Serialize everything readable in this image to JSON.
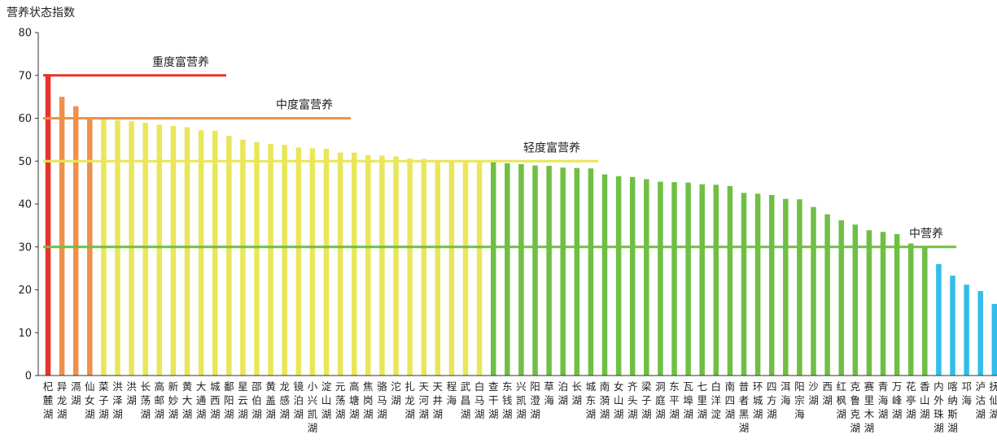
{
  "chart_data": {
    "type": "bar",
    "ylabel": "营养状态指数",
    "ylim": [
      0,
      80
    ],
    "yticks": [
      0,
      10,
      20,
      30,
      40,
      50,
      60,
      70,
      80
    ],
    "grid": false,
    "categories": [
      "杞麓湖",
      "异龙湖",
      "滆湖",
      "仙女湖",
      "菜子湖",
      "洪泽湖",
      "洪湖",
      "长荡湖",
      "高邮湖",
      "新妙湖",
      "黄大湖",
      "大通湖",
      "城西湖",
      "鄱阳湖",
      "星云湖",
      "邵伯湖",
      "黄盖湖",
      "龙感湖",
      "镜泊湖",
      "小兴凯湖",
      "淀山湖",
      "元荡湖",
      "高塘湖",
      "焦岗湖",
      "骆马湖",
      "沱湖",
      "扎龙湖",
      "天河湖",
      "天井湖",
      "程海",
      "武昌湖",
      "白马湖",
      "查干湖",
      "东钱湖",
      "兴凯湖",
      "阳澄湖",
      "草海",
      "泊湖",
      "长湖",
      "城东湖",
      "南漪湖",
      "女山湖",
      "齐头湖",
      "梁子湖",
      "洞庭湖",
      "东平湖",
      "瓦埠湖",
      "七里湖",
      "白洋淀",
      "南四湖",
      "普者黑湖",
      "环城湖",
      "四方湖",
      "洱海",
      "阳宗海",
      "沙湖",
      "西湖",
      "红枫湖",
      "克鲁克湖",
      "赛里木湖",
      "青海湖",
      "万峰湖",
      "花亭湖",
      "香山湖",
      "内外珠湖",
      "喀纳斯湖",
      "邛海",
      "泸沽湖",
      "抚仙湖"
    ],
    "category_lines": [
      [
        "杞",
        "麓",
        "湖"
      ],
      [
        "异",
        "龙",
        "湖"
      ],
      [
        "滆",
        "湖"
      ],
      [
        "仙",
        "女",
        "湖"
      ],
      [
        "菜",
        "子",
        "湖"
      ],
      [
        "洪",
        "泽",
        "湖"
      ],
      [
        "洪",
        "湖"
      ],
      [
        "长",
        "荡",
        "湖"
      ],
      [
        "高",
        "邮",
        "湖"
      ],
      [
        "新",
        "妙",
        "湖"
      ],
      [
        "黄",
        "大",
        "湖"
      ],
      [
        "大",
        "通",
        "湖"
      ],
      [
        "城",
        "西",
        "湖"
      ],
      [
        "鄱",
        "阳",
        "湖"
      ],
      [
        "星",
        "云",
        "湖"
      ],
      [
        "邵",
        "伯",
        "湖"
      ],
      [
        "黄",
        "盖",
        "湖"
      ],
      [
        "龙",
        "感",
        "湖"
      ],
      [
        "镜",
        "泊",
        "湖"
      ],
      [
        "小",
        "兴",
        "凯",
        "湖"
      ],
      [
        "淀",
        "山",
        "湖"
      ],
      [
        "元",
        "荡",
        "湖"
      ],
      [
        "高",
        "塘",
        "湖"
      ],
      [
        "焦",
        "岗",
        "湖"
      ],
      [
        "骆",
        "马",
        "湖"
      ],
      [
        "沱",
        "湖"
      ],
      [
        "扎",
        "龙",
        "湖"
      ],
      [
        "天",
        "河",
        "湖"
      ],
      [
        "天",
        "井",
        "湖"
      ],
      [
        "程",
        "海"
      ],
      [
        "武",
        "昌",
        "湖"
      ],
      [
        "白",
        "马",
        "湖"
      ],
      [
        "查",
        "干",
        "湖"
      ],
      [
        "东",
        "钱",
        "湖"
      ],
      [
        "兴",
        "凯",
        "湖"
      ],
      [
        "阳",
        "澄",
        "湖"
      ],
      [
        "草",
        "海"
      ],
      [
        "泊",
        "湖"
      ],
      [
        "长",
        "湖"
      ],
      [
        "城",
        "东",
        "湖"
      ],
      [
        "南",
        "漪",
        "湖"
      ],
      [
        "女",
        "山",
        "湖"
      ],
      [
        "齐",
        "头",
        "湖"
      ],
      [
        "梁",
        "子",
        "湖"
      ],
      [
        "洞",
        "庭",
        "湖"
      ],
      [
        "东",
        "平",
        "湖"
      ],
      [
        "瓦",
        "埠",
        "湖"
      ],
      [
        "七",
        "里",
        "湖"
      ],
      [
        "白",
        "洋",
        "淀"
      ],
      [
        "南",
        "四",
        "湖"
      ],
      [
        "普",
        "者",
        "黑",
        "湖"
      ],
      [
        "环",
        "城",
        "湖"
      ],
      [
        "四",
        "方",
        "湖"
      ],
      [
        "洱",
        "海"
      ],
      [
        "阳",
        "宗",
        "海"
      ],
      [
        "沙",
        "湖"
      ],
      [
        "西",
        "湖"
      ],
      [
        "红",
        "枫",
        "湖"
      ],
      [
        "克",
        "鲁",
        "克",
        "湖"
      ],
      [
        "赛",
        "里",
        "木",
        "湖"
      ],
      [
        "青",
        "海",
        "湖"
      ],
      [
        "万",
        "峰",
        "湖"
      ],
      [
        "花",
        "亭",
        "湖"
      ],
      [
        "香",
        "山",
        "湖"
      ],
      [
        "内",
        "外",
        "珠",
        "湖"
      ],
      [
        "喀",
        "纳",
        "斯",
        "湖"
      ],
      [
        "邛",
        "海"
      ],
      [
        "泸",
        "沽",
        "湖"
      ],
      [
        "抚",
        "仙",
        "湖"
      ]
    ],
    "values": [
      70.3,
      65.0,
      62.8,
      60.3,
      59.8,
      59.6,
      59.3,
      59.0,
      58.5,
      58.2,
      57.9,
      57.2,
      57.1,
      55.9,
      55.0,
      54.4,
      54.0,
      53.8,
      53.2,
      53.0,
      52.9,
      52.0,
      52.0,
      51.4,
      51.3,
      51.1,
      50.6,
      50.5,
      50.2,
      50.1,
      50.0,
      50.0,
      49.9,
      49.5,
      49.3,
      49.0,
      48.9,
      48.5,
      48.4,
      48.3,
      46.9,
      46.5,
      46.3,
      45.8,
      45.2,
      45.1,
      45.0,
      44.6,
      44.5,
      44.2,
      42.6,
      42.4,
      42.1,
      41.2,
      41.1,
      39.3,
      37.6,
      36.2,
      35.2,
      33.9,
      33.5,
      33.0,
      30.8,
      30.1,
      26.0,
      23.3,
      21.2,
      19.7,
      16.7
    ],
    "band_colors": {
      "severe": "#e8322b",
      "moderate": "#f0904a",
      "light": "#e9e65a",
      "middle_light": "#6fbf44",
      "middle": "#33bde8"
    },
    "reference_lines": [
      {
        "label": "重度富营养",
        "value": 70,
        "color": "#e8322b"
      },
      {
        "label": "中度富营养",
        "value": 60,
        "color": "#f0904a"
      },
      {
        "label": "轻度富营养",
        "value": 50,
        "color": "#e9e65a"
      },
      {
        "label": "中营养",
        "value": 30,
        "color": "#6fbf44"
      }
    ]
  }
}
